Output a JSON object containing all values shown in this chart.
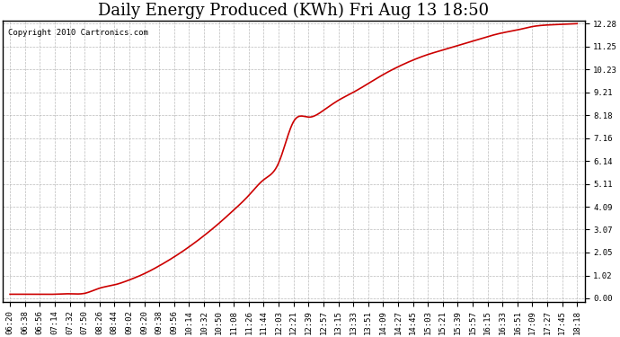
{
  "title": "Daily Energy Produced (KWh) Fri Aug 13 18:50",
  "copyright_text": "Copyright 2010 Cartronics.com",
  "line_color": "#cc0000",
  "background_color": "#ffffff",
  "grid_color": "#aaaaaa",
  "yticks": [
    0.0,
    1.02,
    2.05,
    3.07,
    4.09,
    5.11,
    6.14,
    7.16,
    8.18,
    9.21,
    10.23,
    11.25,
    12.28
  ],
  "xtick_labels": [
    "06:20",
    "06:38",
    "06:56",
    "07:14",
    "07:32",
    "07:50",
    "08:26",
    "08:44",
    "09:02",
    "09:20",
    "09:38",
    "09:56",
    "10:14",
    "10:32",
    "10:50",
    "11:08",
    "11:26",
    "11:44",
    "12:03",
    "12:21",
    "12:39",
    "12:57",
    "13:15",
    "13:33",
    "13:51",
    "14:09",
    "14:27",
    "14:45",
    "15:03",
    "15:21",
    "15:39",
    "15:57",
    "16:15",
    "16:33",
    "16:51",
    "17:09",
    "17:27",
    "17:45",
    "18:18"
  ],
  "curve_x": [
    0,
    1,
    2,
    3,
    4,
    5,
    6,
    7,
    8,
    9,
    10,
    11,
    12,
    13,
    14,
    15,
    16,
    17,
    18,
    19,
    20,
    21,
    22,
    23,
    24,
    25,
    26,
    27,
    28,
    29,
    30,
    31,
    32,
    33,
    34,
    35,
    36,
    37,
    38
  ],
  "curve_y": [
    0.18,
    0.18,
    0.18,
    0.18,
    0.2,
    0.22,
    0.45,
    0.6,
    0.82,
    1.1,
    1.45,
    1.85,
    2.3,
    2.8,
    3.35,
    3.95,
    4.6,
    5.3,
    6.05,
    7.9,
    8.1,
    8.4,
    8.85,
    9.21,
    9.6,
    10.0,
    10.35,
    10.65,
    10.9,
    11.1,
    11.3,
    11.5,
    11.7,
    11.87,
    12.0,
    12.15,
    12.22,
    12.25,
    12.28
  ],
  "ymin": -0.15,
  "ymax": 12.43,
  "xlim_left": -0.5,
  "title_fontsize": 13,
  "tick_fontsize": 6.5,
  "copyright_fontsize": 6.5
}
